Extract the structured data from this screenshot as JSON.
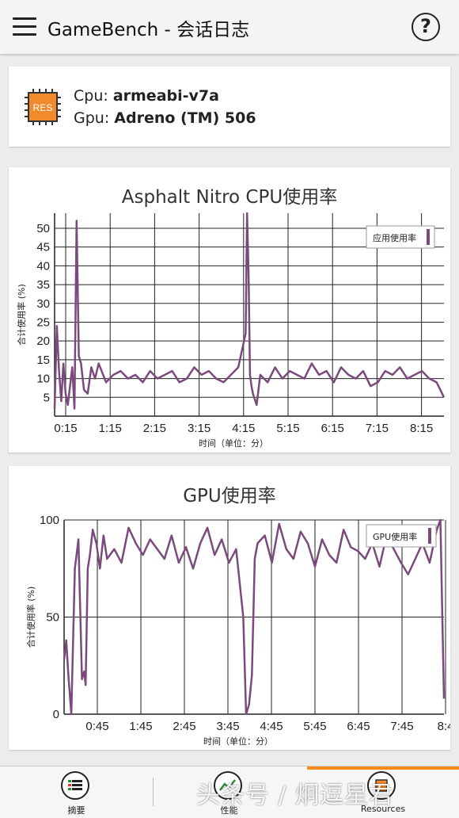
{
  "appbar": {
    "title": "GameBench - 会话日志",
    "help_glyph": "?"
  },
  "hardware": {
    "chip_label": "RES",
    "cpu_prefix": "Cpu: ",
    "cpu_value": "armeabi-v7a",
    "gpu_prefix": "Gpu: ",
    "gpu_value": "Adreno (TM) 506"
  },
  "colors": {
    "series": "#7b4a7c",
    "accent": "#ff8a1e",
    "chip": "#f08a2c"
  },
  "chart_data": [
    {
      "type": "line",
      "title": "Asphalt Nitro CPU使用率",
      "xlabel": "时间（单位：分）",
      "ylabel": "合计使用率 (%)",
      "ylim": [
        0,
        54
      ],
      "yticks": [
        5,
        10,
        15,
        20,
        25,
        30,
        35,
        40,
        45,
        50
      ],
      "xticks": [
        "0:15",
        "1:15",
        "2:15",
        "3:15",
        "4:15",
        "5:15",
        "6:15",
        "7:15",
        "8:15"
      ],
      "xlim_seconds": [
        0,
        530
      ],
      "legend": "top-right",
      "grid": true,
      "series": [
        {
          "name": "应用使用率",
          "x": [
            0,
            3,
            6,
            9,
            12,
            15,
            18,
            21,
            24,
            27,
            30,
            33,
            36,
            40,
            45,
            50,
            55,
            60,
            70,
            80,
            90,
            100,
            110,
            120,
            130,
            140,
            150,
            160,
            170,
            180,
            190,
            200,
            210,
            220,
            230,
            240,
            250,
            260,
            262,
            264,
            266,
            268,
            270,
            275,
            280,
            290,
            300,
            310,
            320,
            330,
            340,
            350,
            360,
            370,
            380,
            390,
            400,
            410,
            420,
            430,
            440,
            450,
            460,
            470,
            480,
            490,
            500,
            510,
            520,
            525,
            530
          ],
          "y": [
            2,
            24,
            12,
            4,
            14,
            6,
            3,
            8,
            13,
            2,
            52,
            16,
            14,
            7,
            6,
            13,
            10,
            14,
            9,
            11,
            12,
            10,
            11,
            9,
            12,
            10,
            11,
            12,
            9,
            10,
            13,
            11,
            12,
            10,
            9,
            11,
            13,
            22,
            54,
            38,
            11,
            8,
            6,
            3,
            11,
            9,
            13,
            10,
            12,
            11,
            10,
            14,
            11,
            12,
            9,
            13,
            11,
            10,
            12,
            8,
            9,
            12,
            11,
            13,
            10,
            11,
            12,
            10,
            9,
            7,
            5
          ]
        }
      ]
    },
    {
      "type": "line",
      "title": "GPU使用率",
      "xlabel": "时间（单位：分）",
      "ylabel": "合计使用率 (%)",
      "ylim": [
        0,
        100
      ],
      "yticks": [
        0,
        50,
        100
      ],
      "xticks": [
        "0:45",
        "1:45",
        "2:45",
        "3:45",
        "4:45",
        "5:45",
        "6:45",
        "7:45",
        "8:4"
      ],
      "xlim_seconds": [
        0,
        530
      ],
      "legend": "top-right",
      "grid": true,
      "series": [
        {
          "name": "GPU使用率",
          "x": [
            0,
            3,
            6,
            10,
            15,
            20,
            25,
            28,
            30,
            33,
            36,
            40,
            45,
            50,
            55,
            60,
            70,
            80,
            90,
            100,
            110,
            120,
            130,
            140,
            150,
            160,
            170,
            180,
            190,
            200,
            210,
            220,
            230,
            240,
            250,
            254,
            258,
            262,
            266,
            270,
            280,
            290,
            300,
            310,
            320,
            330,
            340,
            350,
            360,
            370,
            380,
            390,
            400,
            410,
            420,
            430,
            440,
            450,
            460,
            470,
            480,
            490,
            500,
            510,
            520,
            525,
            530
          ],
          "y": [
            28,
            38,
            20,
            0,
            75,
            90,
            18,
            22,
            15,
            75,
            82,
            95,
            88,
            75,
            92,
            80,
            85,
            78,
            96,
            88,
            82,
            90,
            85,
            80,
            92,
            78,
            86,
            75,
            88,
            96,
            82,
            90,
            78,
            85,
            50,
            0,
            5,
            20,
            80,
            88,
            92,
            78,
            98,
            85,
            80,
            94,
            88,
            76,
            90,
            82,
            78,
            95,
            86,
            84,
            80,
            88,
            76,
            92,
            85,
            78,
            72,
            80,
            88,
            78,
            95,
            100,
            8
          ]
        }
      ]
    }
  ],
  "bottom_nav": [
    {
      "label": "摘要",
      "icon": "summary-icon"
    },
    {
      "label": "性能",
      "icon": "performance-icon"
    },
    {
      "label": "Resources",
      "icon": "resources-icon"
    }
  ],
  "watermark": "头条号 / 炯逗星君"
}
